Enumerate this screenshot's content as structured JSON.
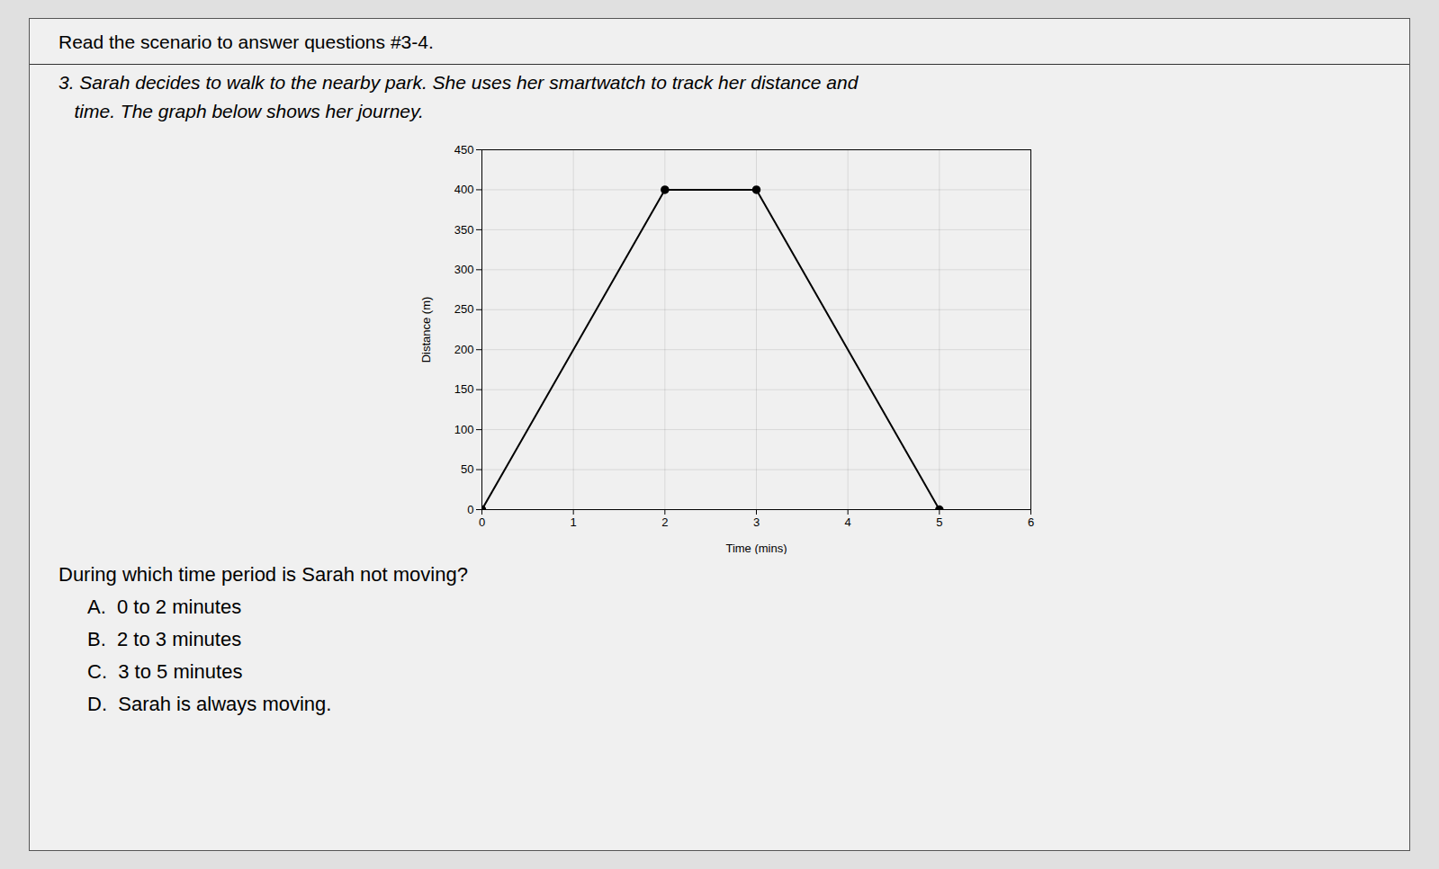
{
  "chart_data": {
    "type": "line",
    "title": "Read the scenario to answer questions #3-4.",
    "subtitle": [
      "3. Sarah decides to walk to the nearby park. She uses her smartwatch to track her distance and",
      "   time. The graph below shows her journey."
    ],
    "annotations": [
      "During which time period is Sarah not moving?",
      "A.  0 to 2 minutes",
      "B.  2 to 3 minutes",
      "C.  3 to 5 minutes",
      "D.  Sarah is always moving."
    ],
    "x": [
      0,
      2,
      3,
      5
    ],
    "values": [
      0,
      400,
      400,
      0
    ],
    "xlabel": "Time (mins)",
    "ylabel": "Distance (m)",
    "xlim": [
      0,
      6
    ],
    "ylim": [
      0,
      450
    ],
    "xticks": [
      0,
      1,
      2,
      3,
      4,
      5,
      6
    ],
    "yticks": [
      0,
      50,
      100,
      150,
      200,
      250,
      300,
      350,
      400,
      450
    ],
    "color": "#000000",
    "marker": "circle",
    "grid": true
  }
}
